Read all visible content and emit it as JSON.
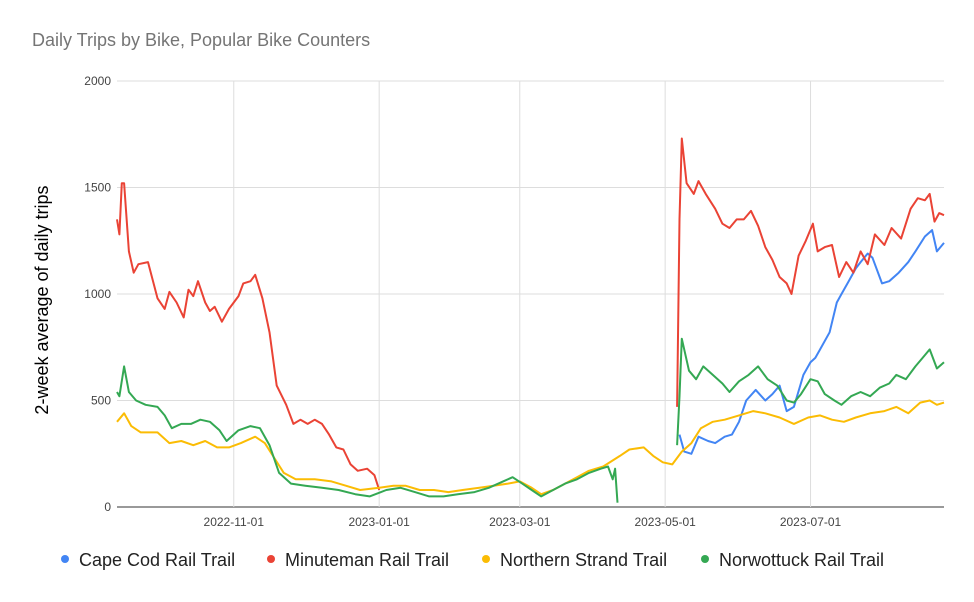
{
  "chart_data": {
    "type": "line",
    "title": "Daily Trips by Bike, Popular Bike Counters",
    "xlabel": "",
    "ylabel": "2-week average of daily trips",
    "ylim": [
      0,
      2000
    ],
    "yticks": [
      "0",
      "500",
      "1000",
      "1500",
      "2000"
    ],
    "xticks": [
      "2022-11-01",
      "2023-01-01",
      "2023-03-01",
      "2023-05-01",
      "2023-07-01"
    ],
    "x_range": [
      "2022-09-13",
      "2023-08-26"
    ],
    "grid": true,
    "legend_position": "bottom",
    "series": [
      {
        "name": "Cape Cod Rail Trail",
        "color": "#4285F4",
        "points": [
          [
            "2023-05-07",
            340
          ],
          [
            "2023-05-09",
            260
          ],
          [
            "2023-05-12",
            250
          ],
          [
            "2023-05-15",
            330
          ],
          [
            "2023-05-19",
            310
          ],
          [
            "2023-05-22",
            300
          ],
          [
            "2023-05-26",
            330
          ],
          [
            "2023-05-29",
            340
          ],
          [
            "2023-06-01",
            400
          ],
          [
            "2023-06-04",
            500
          ],
          [
            "2023-06-08",
            550
          ],
          [
            "2023-06-12",
            500
          ],
          [
            "2023-06-15",
            530
          ],
          [
            "2023-06-18",
            570
          ],
          [
            "2023-06-21",
            450
          ],
          [
            "2023-06-24",
            470
          ],
          [
            "2023-06-28",
            620
          ],
          [
            "2023-07-01",
            680
          ],
          [
            "2023-07-03",
            700
          ],
          [
            "2023-07-05",
            740
          ],
          [
            "2023-07-09",
            820
          ],
          [
            "2023-07-12",
            960
          ],
          [
            "2023-07-14",
            1000
          ],
          [
            "2023-07-17",
            1060
          ],
          [
            "2023-07-20",
            1120
          ],
          [
            "2023-07-22",
            1150
          ],
          [
            "2023-07-25",
            1190
          ],
          [
            "2023-07-27",
            1170
          ],
          [
            "2023-07-31",
            1050
          ],
          [
            "2023-08-03",
            1060
          ],
          [
            "2023-08-07",
            1100
          ],
          [
            "2023-08-11",
            1150
          ],
          [
            "2023-08-14",
            1200
          ],
          [
            "2023-08-18",
            1270
          ],
          [
            "2023-08-21",
            1300
          ],
          [
            "2023-08-23",
            1200
          ],
          [
            "2023-08-26",
            1240
          ]
        ]
      },
      {
        "name": "Minuteman Rail Trail",
        "color": "#EA4335",
        "points": [
          [
            "2022-09-13",
            1350
          ],
          [
            "2022-09-14",
            1280
          ],
          [
            "2022-09-15",
            1520
          ],
          [
            "2022-09-16",
            1520
          ],
          [
            "2022-09-18",
            1200
          ],
          [
            "2022-09-20",
            1100
          ],
          [
            "2022-09-22",
            1140
          ],
          [
            "2022-09-26",
            1150
          ],
          [
            "2022-09-30",
            980
          ],
          [
            "2022-10-03",
            930
          ],
          [
            "2022-10-05",
            1010
          ],
          [
            "2022-10-08",
            960
          ],
          [
            "2022-10-11",
            890
          ],
          [
            "2022-10-13",
            1020
          ],
          [
            "2022-10-15",
            990
          ],
          [
            "2022-10-17",
            1060
          ],
          [
            "2022-10-20",
            960
          ],
          [
            "2022-10-22",
            920
          ],
          [
            "2022-10-24",
            940
          ],
          [
            "2022-10-27",
            870
          ],
          [
            "2022-10-30",
            930
          ],
          [
            "2022-11-03",
            990
          ],
          [
            "2022-11-05",
            1050
          ],
          [
            "2022-11-08",
            1060
          ],
          [
            "2022-11-10",
            1090
          ],
          [
            "2022-11-13",
            980
          ],
          [
            "2022-11-16",
            820
          ],
          [
            "2022-11-19",
            570
          ],
          [
            "2022-11-23",
            480
          ],
          [
            "2022-11-26",
            390
          ],
          [
            "2022-11-29",
            410
          ],
          [
            "2022-12-02",
            390
          ],
          [
            "2022-12-05",
            410
          ],
          [
            "2022-12-08",
            390
          ],
          [
            "2022-12-11",
            340
          ],
          [
            "2022-12-14",
            280
          ],
          [
            "2022-12-17",
            270
          ],
          [
            "2022-12-20",
            200
          ],
          [
            "2022-12-23",
            170
          ],
          [
            "2022-12-27",
            180
          ],
          [
            "2022-12-30",
            150
          ],
          [
            "2023-01-01",
            80
          ]
        ]
      },
      {
        "name": "Minuteman Rail Trail",
        "color": "#EA4335",
        "points": [
          [
            "2023-05-06",
            470
          ],
          [
            "2023-05-07",
            1350
          ],
          [
            "2023-05-08",
            1730
          ],
          [
            "2023-05-10",
            1520
          ],
          [
            "2023-05-13",
            1470
          ],
          [
            "2023-05-15",
            1530
          ],
          [
            "2023-05-18",
            1470
          ],
          [
            "2023-05-22",
            1400
          ],
          [
            "2023-05-25",
            1330
          ],
          [
            "2023-05-28",
            1310
          ],
          [
            "2023-05-31",
            1350
          ],
          [
            "2023-06-03",
            1350
          ],
          [
            "2023-06-06",
            1390
          ],
          [
            "2023-06-09",
            1320
          ],
          [
            "2023-06-12",
            1220
          ],
          [
            "2023-06-15",
            1160
          ],
          [
            "2023-06-18",
            1080
          ],
          [
            "2023-06-21",
            1050
          ],
          [
            "2023-06-23",
            1000
          ],
          [
            "2023-06-26",
            1180
          ],
          [
            "2023-06-29",
            1250
          ],
          [
            "2023-07-02",
            1330
          ],
          [
            "2023-07-04",
            1200
          ],
          [
            "2023-07-07",
            1220
          ],
          [
            "2023-07-10",
            1230
          ],
          [
            "2023-07-13",
            1080
          ],
          [
            "2023-07-16",
            1150
          ],
          [
            "2023-07-19",
            1100
          ],
          [
            "2023-07-22",
            1200
          ],
          [
            "2023-07-25",
            1140
          ],
          [
            "2023-07-28",
            1280
          ],
          [
            "2023-08-01",
            1230
          ],
          [
            "2023-08-04",
            1310
          ],
          [
            "2023-08-08",
            1260
          ],
          [
            "2023-08-12",
            1400
          ],
          [
            "2023-08-15",
            1450
          ],
          [
            "2023-08-18",
            1440
          ],
          [
            "2023-08-20",
            1470
          ],
          [
            "2023-08-22",
            1340
          ],
          [
            "2023-08-24",
            1380
          ],
          [
            "2023-08-26",
            1370
          ]
        ]
      },
      {
        "name": "Northern Strand Trail",
        "color": "#FBBC04",
        "points": [
          [
            "2022-09-13",
            400
          ],
          [
            "2022-09-16",
            440
          ],
          [
            "2022-09-19",
            380
          ],
          [
            "2022-09-23",
            350
          ],
          [
            "2022-09-30",
            350
          ],
          [
            "2022-10-05",
            300
          ],
          [
            "2022-10-10",
            310
          ],
          [
            "2022-10-15",
            290
          ],
          [
            "2022-10-20",
            310
          ],
          [
            "2022-10-25",
            280
          ],
          [
            "2022-10-30",
            280
          ],
          [
            "2022-11-04",
            300
          ],
          [
            "2022-11-10",
            330
          ],
          [
            "2022-11-14",
            300
          ],
          [
            "2022-11-18",
            230
          ],
          [
            "2022-11-22",
            160
          ],
          [
            "2022-11-27",
            130
          ],
          [
            "2022-12-05",
            130
          ],
          [
            "2022-12-12",
            120
          ],
          [
            "2022-12-18",
            100
          ],
          [
            "2022-12-24",
            80
          ],
          [
            "2023-01-01",
            90
          ],
          [
            "2023-01-07",
            100
          ],
          [
            "2023-01-12",
            100
          ],
          [
            "2023-01-18",
            80
          ],
          [
            "2023-01-24",
            80
          ],
          [
            "2023-01-30",
            70
          ],
          [
            "2023-02-05",
            80
          ],
          [
            "2023-02-12",
            90
          ],
          [
            "2023-02-18",
            100
          ],
          [
            "2023-02-24",
            110
          ],
          [
            "2023-03-01",
            120
          ],
          [
            "2023-03-06",
            90
          ],
          [
            "2023-03-10",
            60
          ],
          [
            "2023-03-15",
            80
          ],
          [
            "2023-03-20",
            110
          ],
          [
            "2023-03-25",
            140
          ],
          [
            "2023-03-30",
            170
          ],
          [
            "2023-04-05",
            190
          ],
          [
            "2023-04-12",
            240
          ],
          [
            "2023-04-16",
            270
          ],
          [
            "2023-04-22",
            280
          ],
          [
            "2023-04-26",
            240
          ],
          [
            "2023-04-30",
            210
          ],
          [
            "2023-05-04",
            200
          ],
          [
            "2023-05-08",
            260
          ],
          [
            "2023-05-12",
            300
          ],
          [
            "2023-05-16",
            370
          ],
          [
            "2023-05-21",
            400
          ],
          [
            "2023-05-26",
            410
          ],
          [
            "2023-06-01",
            430
          ],
          [
            "2023-06-07",
            450
          ],
          [
            "2023-06-12",
            440
          ],
          [
            "2023-06-18",
            420
          ],
          [
            "2023-06-24",
            390
          ],
          [
            "2023-06-30",
            420
          ],
          [
            "2023-07-05",
            430
          ],
          [
            "2023-07-10",
            410
          ],
          [
            "2023-07-15",
            400
          ],
          [
            "2023-07-20",
            420
          ],
          [
            "2023-07-26",
            440
          ],
          [
            "2023-08-01",
            450
          ],
          [
            "2023-08-06",
            470
          ],
          [
            "2023-08-11",
            440
          ],
          [
            "2023-08-16",
            490
          ],
          [
            "2023-08-20",
            500
          ],
          [
            "2023-08-23",
            480
          ],
          [
            "2023-08-26",
            490
          ]
        ]
      },
      {
        "name": "Norwottuck Rail Trail",
        "color": "#34A853",
        "points": [
          [
            "2022-09-13",
            540
          ],
          [
            "2022-09-14",
            520
          ],
          [
            "2022-09-16",
            660
          ],
          [
            "2022-09-18",
            540
          ],
          [
            "2022-09-21",
            500
          ],
          [
            "2022-09-25",
            480
          ],
          [
            "2022-09-30",
            470
          ],
          [
            "2022-10-03",
            430
          ],
          [
            "2022-10-06",
            370
          ],
          [
            "2022-10-10",
            390
          ],
          [
            "2022-10-14",
            390
          ],
          [
            "2022-10-18",
            410
          ],
          [
            "2022-10-22",
            400
          ],
          [
            "2022-10-26",
            360
          ],
          [
            "2022-10-29",
            310
          ],
          [
            "2022-11-03",
            360
          ],
          [
            "2022-11-08",
            380
          ],
          [
            "2022-11-12",
            370
          ],
          [
            "2022-11-16",
            290
          ],
          [
            "2022-11-20",
            160
          ],
          [
            "2022-11-25",
            110
          ],
          [
            "2022-12-01",
            100
          ],
          [
            "2022-12-08",
            90
          ],
          [
            "2022-12-15",
            80
          ],
          [
            "2022-12-22",
            60
          ],
          [
            "2022-12-28",
            50
          ],
          [
            "2023-01-04",
            80
          ],
          [
            "2023-01-10",
            90
          ],
          [
            "2023-01-16",
            70
          ],
          [
            "2023-01-22",
            50
          ],
          [
            "2023-01-28",
            50
          ],
          [
            "2023-02-03",
            60
          ],
          [
            "2023-02-10",
            70
          ],
          [
            "2023-02-16",
            90
          ],
          [
            "2023-02-22",
            120
          ],
          [
            "2023-02-26",
            140
          ],
          [
            "2023-03-02",
            110
          ],
          [
            "2023-03-06",
            80
          ],
          [
            "2023-03-10",
            50
          ],
          [
            "2023-03-15",
            80
          ],
          [
            "2023-03-20",
            110
          ],
          [
            "2023-03-25",
            130
          ],
          [
            "2023-03-30",
            160
          ],
          [
            "2023-04-04",
            180
          ],
          [
            "2023-04-07",
            190
          ],
          [
            "2023-04-09",
            130
          ],
          [
            "2023-04-10",
            180
          ],
          [
            "2023-04-11",
            20
          ]
        ]
      },
      {
        "name": "Norwottuck Rail Trail",
        "color": "#34A853",
        "points": [
          [
            "2023-05-06",
            290
          ],
          [
            "2023-05-07",
            520
          ],
          [
            "2023-05-08",
            790
          ],
          [
            "2023-05-11",
            640
          ],
          [
            "2023-05-14",
            600
          ],
          [
            "2023-05-17",
            660
          ],
          [
            "2023-05-21",
            620
          ],
          [
            "2023-05-25",
            580
          ],
          [
            "2023-05-28",
            540
          ],
          [
            "2023-06-01",
            590
          ],
          [
            "2023-06-05",
            620
          ],
          [
            "2023-06-09",
            660
          ],
          [
            "2023-06-13",
            600
          ],
          [
            "2023-06-17",
            570
          ],
          [
            "2023-06-21",
            500
          ],
          [
            "2023-06-24",
            490
          ],
          [
            "2023-06-27",
            530
          ],
          [
            "2023-07-01",
            600
          ],
          [
            "2023-07-04",
            590
          ],
          [
            "2023-07-07",
            530
          ],
          [
            "2023-07-11",
            500
          ],
          [
            "2023-07-14",
            480
          ],
          [
            "2023-07-18",
            520
          ],
          [
            "2023-07-22",
            540
          ],
          [
            "2023-07-26",
            520
          ],
          [
            "2023-07-30",
            560
          ],
          [
            "2023-08-03",
            580
          ],
          [
            "2023-08-06",
            620
          ],
          [
            "2023-08-10",
            600
          ],
          [
            "2023-08-14",
            660
          ],
          [
            "2023-08-17",
            700
          ],
          [
            "2023-08-20",
            740
          ],
          [
            "2023-08-23",
            650
          ],
          [
            "2023-08-26",
            680
          ]
        ]
      }
    ],
    "legend": [
      {
        "name": "Cape Cod Rail Trail",
        "color": "#4285F4"
      },
      {
        "name": "Minuteman Rail Trail",
        "color": "#EA4335"
      },
      {
        "name": "Northern Strand Trail",
        "color": "#FBBC04"
      },
      {
        "name": "Norwottuck Rail Trail",
        "color": "#34A853"
      }
    ]
  }
}
